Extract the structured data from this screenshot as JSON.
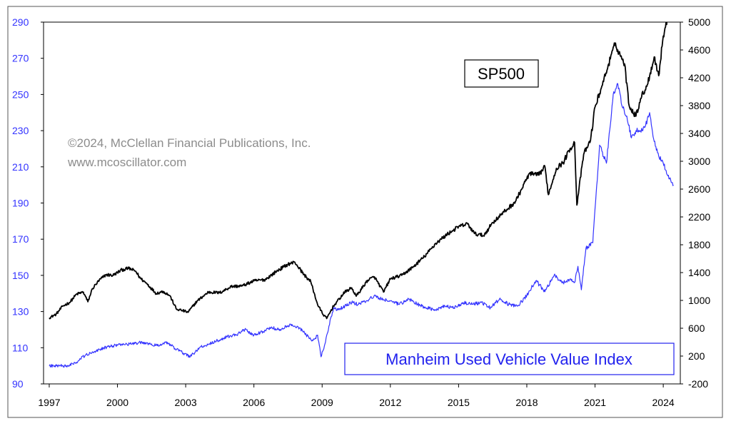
{
  "copyright": {
    "line1": "©2024, McClellan Financial Publications, Inc.",
    "line2": "www.mcoscillator.com"
  },
  "chart_data": {
    "type": "line",
    "title": "",
    "xlabel": "",
    "ylabel_left": "",
    "ylabel_right": "",
    "xlim": [
      1996.75,
      2024.75
    ],
    "x_ticks": [
      1997,
      2000,
      2003,
      2006,
      2009,
      2012,
      2015,
      2018,
      2021,
      2024
    ],
    "x_tick_labels": [
      "1997",
      "2000",
      "2003",
      "2006",
      "2009",
      "2012",
      "2015",
      "2018",
      "2021",
      "2024"
    ],
    "y_left": {
      "lim": [
        90,
        290
      ],
      "ticks": [
        90,
        110,
        130,
        150,
        170,
        190,
        210,
        230,
        250,
        270,
        290
      ],
      "color": "#3333ff"
    },
    "y_right": {
      "lim": [
        -200,
        5000
      ],
      "ticks": [
        -200,
        200,
        600,
        1000,
        1400,
        1800,
        2200,
        2600,
        3000,
        3400,
        3800,
        4200,
        4600,
        5000
      ],
      "color": "#000000"
    },
    "grid": false,
    "series": [
      {
        "name": "SP500",
        "axis": "right",
        "color": "#000000",
        "x": [
          1997.0,
          1997.3,
          1997.6,
          1997.9,
          1998.2,
          1998.5,
          1998.7,
          1998.9,
          1999.2,
          1999.5,
          1999.8,
          2000.2,
          2000.5,
          2000.8,
          2001.0,
          2001.3,
          2001.7,
          2002.0,
          2002.3,
          2002.6,
          2002.8,
          2003.1,
          2003.5,
          2004.0,
          2004.5,
          2005.0,
          2005.5,
          2006.0,
          2006.5,
          2007.0,
          2007.5,
          2007.8,
          2008.2,
          2008.5,
          2008.8,
          2009.0,
          2009.2,
          2009.5,
          2010.0,
          2010.3,
          2010.5,
          2011.0,
          2011.3,
          2011.7,
          2012.0,
          2012.5,
          2013.0,
          2013.5,
          2014.0,
          2014.5,
          2015.0,
          2015.4,
          2015.7,
          2016.1,
          2016.5,
          2017.0,
          2017.5,
          2018.0,
          2018.1,
          2018.5,
          2018.8,
          2018.95,
          2019.3,
          2019.6,
          2019.9,
          2020.1,
          2020.2,
          2020.5,
          2020.8,
          2021.0,
          2021.3,
          2021.6,
          2021.9,
          2022.0,
          2022.3,
          2022.5,
          2022.8,
          2023.0,
          2023.3,
          2023.6,
          2023.8,
          2024.0,
          2024.3,
          2024.45
        ],
        "y": [
          750,
          800,
          920,
          970,
          1090,
          1120,
          980,
          1170,
          1290,
          1370,
          1360,
          1440,
          1460,
          1420,
          1320,
          1240,
          1100,
          1130,
          1070,
          870,
          860,
          830,
          990,
          1120,
          1110,
          1200,
          1210,
          1280,
          1300,
          1420,
          1520,
          1550,
          1370,
          1270,
          940,
          820,
          740,
          920,
          1120,
          1180,
          1060,
          1290,
          1340,
          1120,
          1310,
          1360,
          1480,
          1630,
          1820,
          1950,
          2060,
          2100,
          1960,
          1930,
          2120,
          2270,
          2420,
          2750,
          2820,
          2800,
          2920,
          2520,
          2900,
          2980,
          3180,
          3270,
          2370,
          3100,
          3300,
          3780,
          4080,
          4400,
          4700,
          4600,
          4400,
          3800,
          3650,
          3900,
          4100,
          4500,
          4230,
          4800,
          5200,
          5450
        ]
      },
      {
        "name": "Manheim Used Vehicle Value Index",
        "axis": "left",
        "color": "#3333ff",
        "x": [
          1997.0,
          1997.4,
          1997.8,
          1998.2,
          1998.6,
          1999.0,
          1999.4,
          1999.8,
          2000.2,
          2000.6,
          2001.0,
          2001.4,
          2001.8,
          2002.2,
          2002.6,
          2002.9,
          2003.2,
          2003.6,
          2004.0,
          2004.4,
          2004.8,
          2005.2,
          2005.6,
          2006.0,
          2006.4,
          2006.8,
          2007.2,
          2007.6,
          2008.0,
          2008.3,
          2008.6,
          2008.8,
          2008.95,
          2009.1,
          2009.3,
          2009.5,
          2009.7,
          2010.0,
          2010.3,
          2010.6,
          2011.0,
          2011.3,
          2011.6,
          2012.0,
          2012.4,
          2012.8,
          2013.2,
          2013.6,
          2014.0,
          2014.4,
          2014.8,
          2015.2,
          2015.6,
          2016.0,
          2016.4,
          2016.8,
          2017.2,
          2017.6,
          2018.0,
          2018.4,
          2018.8,
          2019.2,
          2019.6,
          2019.9,
          2020.1,
          2020.25,
          2020.4,
          2020.6,
          2020.9,
          2021.2,
          2021.5,
          2021.8,
          2022.0,
          2022.2,
          2022.4,
          2022.6,
          2022.8,
          2023.0,
          2023.2,
          2023.4,
          2023.6,
          2023.8,
          2024.0,
          2024.2,
          2024.45
        ],
        "y": [
          100,
          100,
          100,
          102,
          106,
          108,
          110,
          111,
          112,
          112,
          113,
          112,
          111,
          113,
          109,
          107,
          105,
          110,
          112,
          114,
          116,
          117,
          120,
          117,
          119,
          121,
          120,
          123,
          121,
          117,
          114,
          117,
          105,
          111,
          122,
          132,
          131,
          133,
          135,
          134,
          136,
          139,
          137,
          136,
          134,
          137,
          134,
          132,
          131,
          133,
          132,
          135,
          134,
          135,
          132,
          137,
          134,
          133,
          139,
          147,
          141,
          150,
          146,
          148,
          146,
          155,
          142,
          165,
          168,
          222,
          212,
          250,
          256,
          243,
          238,
          226,
          230,
          230,
          232,
          240,
          224,
          216,
          212,
          205,
          200
        ]
      }
    ],
    "annotations": [
      {
        "text": "SP500",
        "color": "#000000"
      },
      {
        "text": "Manheim Used Vehicle Value Index",
        "color": "#2222ee"
      }
    ]
  }
}
